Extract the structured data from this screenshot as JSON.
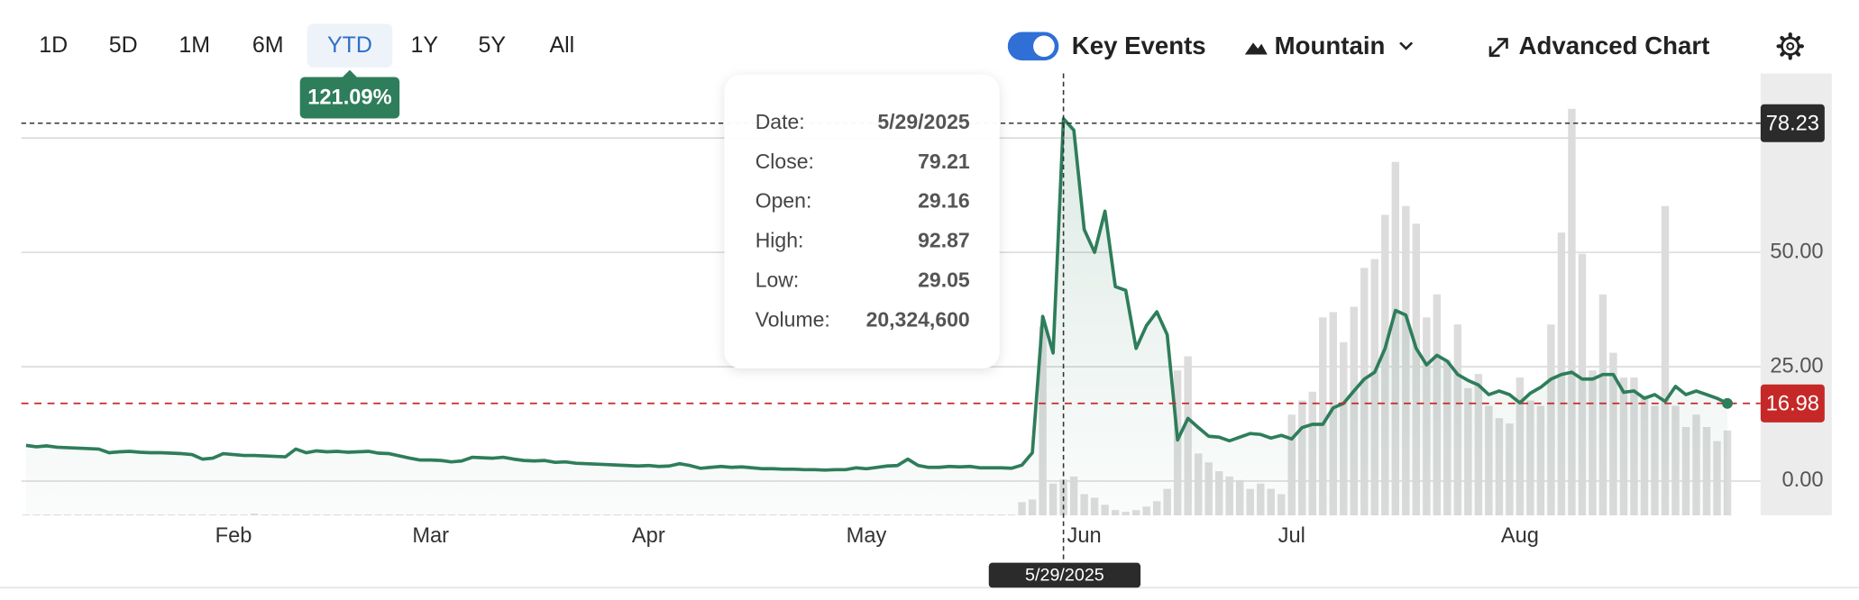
{
  "chart_data": {
    "type": "line",
    "toolbar": {
      "ranges": [
        "1D",
        "5D",
        "1M",
        "6M",
        "YTD",
        "1Y",
        "5Y",
        "All"
      ],
      "selected": "YTD",
      "change": "121.09%",
      "toggle": "Key Events",
      "style": "Mountain",
      "advanced": "Advanced Chart"
    },
    "xlim": [
      0,
      164
    ],
    "xticks": [
      {
        "value": 20,
        "label": "Feb"
      },
      {
        "value": 39,
        "label": "Mar"
      },
      {
        "value": 60,
        "label": "Apr"
      },
      {
        "value": 81,
        "label": "May"
      },
      {
        "value": 102,
        "label": "Jun"
      },
      {
        "value": 122,
        "label": "Jul"
      },
      {
        "value": 144,
        "label": "Aug"
      }
    ],
    "ylim": [
      -7.5,
      89.1
    ],
    "yticks": [
      {
        "value": 0,
        "label": "0.00"
      },
      {
        "value": 25,
        "label": "25.00"
      },
      {
        "value": 50,
        "label": "50.00"
      },
      {
        "value": 75,
        "label": null
      }
    ],
    "grid": true,
    "series": [
      {
        "color": "#2e7d5b",
        "values": [
          7.8,
          7.5,
          7.7,
          7.4,
          7.3,
          7.2,
          7.1,
          7.0,
          6.2,
          6.4,
          6.5,
          6.3,
          6.2,
          6.2,
          6.1,
          6.0,
          5.8,
          4.8,
          5.0,
          6.0,
          5.8,
          5.6,
          5.6,
          5.5,
          5.4,
          5.3,
          7.0,
          6.2,
          6.6,
          6.4,
          6.5,
          6.3,
          6.4,
          6.5,
          6.1,
          6.0,
          5.5,
          5.0,
          4.6,
          4.6,
          4.5,
          4.2,
          4.4,
          5.2,
          5.1,
          5.0,
          5.2,
          4.8,
          4.5,
          4.4,
          4.5,
          4.1,
          4.2,
          3.9,
          3.8,
          3.7,
          3.6,
          3.5,
          3.4,
          3.3,
          3.4,
          3.2,
          3.3,
          3.8,
          3.4,
          2.8,
          3.0,
          3.2,
          3.0,
          3.1,
          2.9,
          2.7,
          2.7,
          2.6,
          2.6,
          2.5,
          2.5,
          2.4,
          2.5,
          2.5,
          2.9,
          2.7,
          3.0,
          3.3,
          3.4,
          4.8,
          3.4,
          3.0,
          3.0,
          3.2,
          3.1,
          3.2,
          2.9,
          2.9,
          2.9,
          2.8,
          3.5,
          6.2,
          36,
          28,
          79.21,
          76.7,
          55,
          50,
          59,
          42.5,
          41.7,
          29,
          34,
          37,
          32,
          9,
          13.7,
          11.7,
          9.8,
          9.6,
          8.8,
          9.6,
          10.4,
          10.2,
          9.4,
          10,
          9.2,
          11.7,
          12.4,
          12.4,
          16,
          17,
          19.7,
          22.3,
          23.8,
          29,
          37.3,
          36.3,
          29,
          25.4,
          27.5,
          26.2,
          23.3,
          22,
          21,
          18.9,
          19.7,
          18.9,
          17.1,
          19.2,
          20.5,
          22.3,
          23.3,
          23.8,
          22.3,
          22.3,
          23.3,
          23.3,
          19.4,
          19.7,
          18.1,
          18.9,
          17.4,
          20.7,
          18.9,
          19.7,
          18.9,
          18.1,
          16.98
        ]
      }
    ],
    "volume_color": "#dcdcdc",
    "volume_lim": [
      0,
      250000000
    ],
    "volume": [
      500000,
      500000,
      500000,
      500000,
      500000,
      500000,
      500000,
      500000,
      500000,
      500000,
      500000,
      500000,
      500000,
      500000,
      500000,
      500000,
      500000,
      500000,
      500000,
      500000,
      500000,
      500000,
      1000000,
      500000,
      500000,
      500000,
      500000,
      500000,
      500000,
      500000,
      500000,
      500000,
      500000,
      500000,
      500000,
      500000,
      500000,
      500000,
      500000,
      500000,
      500000,
      500000,
      500000,
      500000,
      500000,
      500000,
      500000,
      500000,
      500000,
      500000,
      500000,
      500000,
      500000,
      500000,
      500000,
      500000,
      500000,
      500000,
      500000,
      500000,
      500000,
      500000,
      500000,
      500000,
      500000,
      500000,
      500000,
      500000,
      500000,
      500000,
      500000,
      500000,
      500000,
      500000,
      500000,
      500000,
      500000,
      500000,
      500000,
      500000,
      500000,
      500000,
      500000,
      500000,
      500000,
      500000,
      500000,
      500000,
      500000,
      500000,
      500000,
      500000,
      500000,
      500000,
      500000,
      500000,
      7500000,
      9000000,
      107000000,
      18000000,
      20324600,
      22000000,
      12000000,
      10000000,
      6000000,
      3000000,
      2000000,
      3000000,
      5000000,
      8000000,
      15000000,
      82000000,
      90000000,
      35000000,
      30000000,
      25000000,
      22000000,
      20000000,
      15000000,
      18000000,
      15000000,
      12000000,
      57000000,
      65000000,
      70000000,
      112000000,
      115000000,
      98000000,
      118000000,
      140000000,
      145000000,
      170000000,
      200000000,
      175000000,
      165000000,
      112000000,
      125000000,
      88000000,
      108000000,
      72000000,
      80000000,
      62000000,
      55000000,
      52000000,
      78000000,
      65000000,
      62000000,
      108000000,
      160000000,
      230000000,
      148000000,
      82000000,
      125000000,
      92000000,
      78000000,
      78000000,
      68000000,
      62000000,
      175000000,
      62000000,
      50000000,
      57000000,
      50000000,
      42000000,
      48000000
    ],
    "last_color": "#c62828",
    "crosshair": {
      "x": 100,
      "y": 78.23,
      "label": "5/29/2025"
    },
    "tooltip": {
      "rows": [
        {
          "label": "Date:",
          "value": "5/29/2025"
        },
        {
          "label": "Close:",
          "value": "79.21"
        },
        {
          "label": "Open:",
          "value": "29.16"
        },
        {
          "label": "High:",
          "value": "92.87"
        },
        {
          "label": "Low:",
          "value": "29.05"
        },
        {
          "label": "Volume:",
          "value": "20,324,600"
        }
      ]
    }
  }
}
